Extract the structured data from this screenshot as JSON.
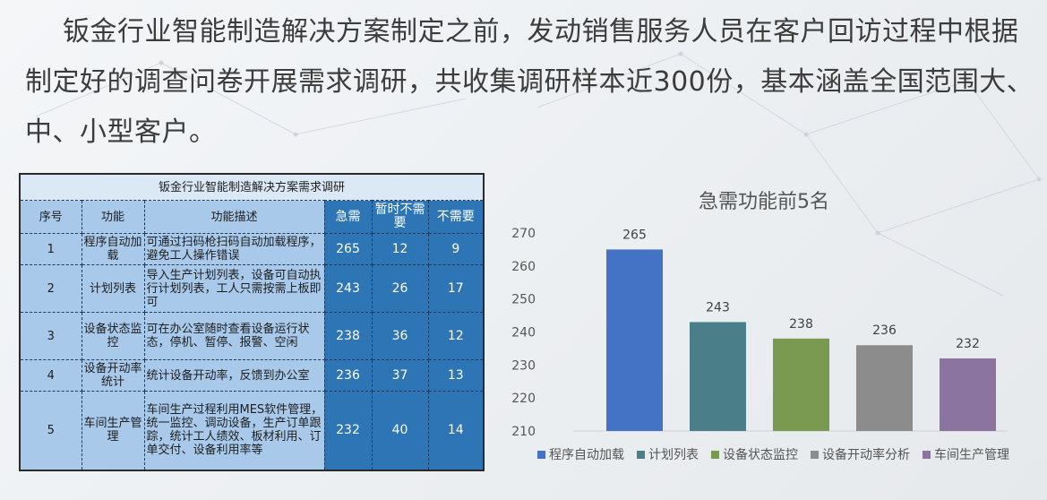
{
  "intro_text": "钣金行业智能制造解决方案制定之前，发动销售服务人员在客户回访过程中根据制定好的调查问卷开展需求调研，共收集调研样本近300份，基本涵盖全国范围大、中、小型客户。",
  "survey_table": {
    "title": "钣金行业智能制造解决方案需求调研",
    "headers": [
      "序号",
      "功能",
      "功能描述",
      "急需",
      "暂时不需要",
      "不需要"
    ],
    "rows": [
      {
        "no": "1",
        "func": "程序自动加载",
        "desc": "可通过扫码枪扫码自动加载程序，避免工人操作错误",
        "urgent": "265",
        "later": "12",
        "none": "9"
      },
      {
        "no": "2",
        "func": "计划列表",
        "desc": "导入生产计划列表，设备可自动执行计划列表，工人只需按需上板即可",
        "urgent": "243",
        "later": "26",
        "none": "17"
      },
      {
        "no": "3",
        "func": "设备状态监控",
        "desc": "可在办公室随时查看设备运行状态，停机、暂停、报警、空闲",
        "urgent": "238",
        "later": "36",
        "none": "12"
      },
      {
        "no": "4",
        "func": "设备开动率统计",
        "desc": "统计设备开动率，反馈到办公室",
        "urgent": "236",
        "later": "37",
        "none": "13"
      },
      {
        "no": "5",
        "func": "车间生产管理",
        "desc": "车间生产过程利用MES软件管理，统一监控、调动设备，生产订单跟踪，统计工人绩效、板材利用、订单交付、设备利用率等",
        "urgent": "232",
        "later": "40",
        "none": "14"
      }
    ]
  },
  "chart_data": {
    "type": "bar",
    "title": "急需功能前5名",
    "categories": [
      "程序自动加载",
      "计划列表",
      "设备状态监控",
      "设备开动率分析",
      "车间生产管理"
    ],
    "values": [
      265,
      243,
      238,
      236,
      232
    ],
    "colors": [
      "#4472c4",
      "#4a7f89",
      "#7a9a52",
      "#8c8c8c",
      "#8b74a0"
    ],
    "ylim": [
      210,
      270
    ],
    "yticks": [
      210,
      220,
      230,
      240,
      250,
      260,
      270
    ],
    "xlabel": "",
    "ylabel": "",
    "grid": false,
    "legend": "bottom",
    "data_labels": true
  }
}
